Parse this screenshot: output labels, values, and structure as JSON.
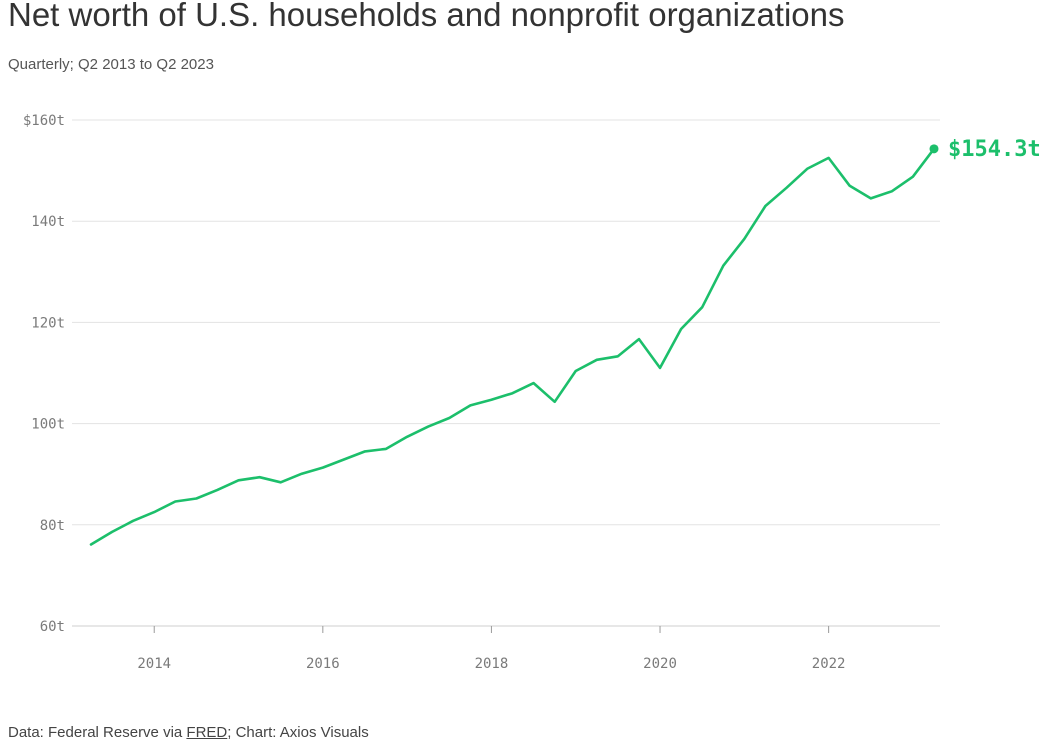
{
  "header": {
    "title": "Net worth of U.S. households and nonprofit organizations",
    "subtitle": "Quarterly; Q2 2013 to Q2 2023"
  },
  "footer": {
    "prefix": "Data: Federal Reserve via ",
    "link": "FRED",
    "suffix": "; Chart: Axios Visuals"
  },
  "chart_data": {
    "type": "line",
    "title": "Net worth of U.S. households and nonprofit organizations",
    "subtitle": "Quarterly; Q2 2013 to Q2 2023",
    "xlabel": "",
    "ylabel": "",
    "color": "#1cbf6b",
    "grid": true,
    "ylim": [
      60,
      160
    ],
    "yticks": [
      60,
      80,
      100,
      120,
      140,
      160
    ],
    "ytick_labels": [
      "60t",
      "80t",
      "100t",
      "120t",
      "140t",
      "$160t"
    ],
    "xlim": [
      2013.25,
      2023.25
    ],
    "xticks": [
      2014,
      2016,
      2018,
      2020,
      2022
    ],
    "xtick_labels": [
      "2014",
      "2016",
      "2018",
      "2020",
      "2022"
    ],
    "end_label": "$154.3t",
    "series": [
      {
        "x": [
          "2013 Q2",
          "2013 Q3",
          "2013 Q4",
          "2014 Q1",
          "2014 Q2",
          "2014 Q3",
          "2014 Q4",
          "2015 Q1",
          "2015 Q2",
          "2015 Q3",
          "2015 Q4",
          "2016 Q1",
          "2016 Q2",
          "2016 Q3",
          "2016 Q4",
          "2017 Q1",
          "2017 Q2",
          "2017 Q3",
          "2017 Q4",
          "2018 Q1",
          "2018 Q2",
          "2018 Q3",
          "2018 Q4",
          "2019 Q1",
          "2019 Q2",
          "2019 Q3",
          "2019 Q4",
          "2020 Q1",
          "2020 Q2",
          "2020 Q3",
          "2020 Q4",
          "2021 Q1",
          "2021 Q2",
          "2021 Q3",
          "2021 Q4",
          "2022 Q1",
          "2022 Q2",
          "2022 Q3",
          "2022 Q4",
          "2023 Q1",
          "2023 Q2"
        ],
        "values": [
          76.1,
          78.6,
          80.8,
          82.5,
          84.6,
          85.2,
          86.9,
          88.8,
          89.4,
          88.4,
          90.1,
          91.3,
          92.9,
          94.5,
          95.0,
          97.4,
          99.4,
          101.1,
          103.6,
          104.7,
          106.0,
          108.0,
          104.3,
          110.4,
          112.6,
          113.3,
          116.7,
          111.0,
          118.7,
          123.0,
          131.2,
          136.5,
          143.0,
          146.6,
          150.4,
          152.5,
          147.0,
          144.5,
          145.9,
          148.8,
          154.3
        ]
      }
    ]
  }
}
